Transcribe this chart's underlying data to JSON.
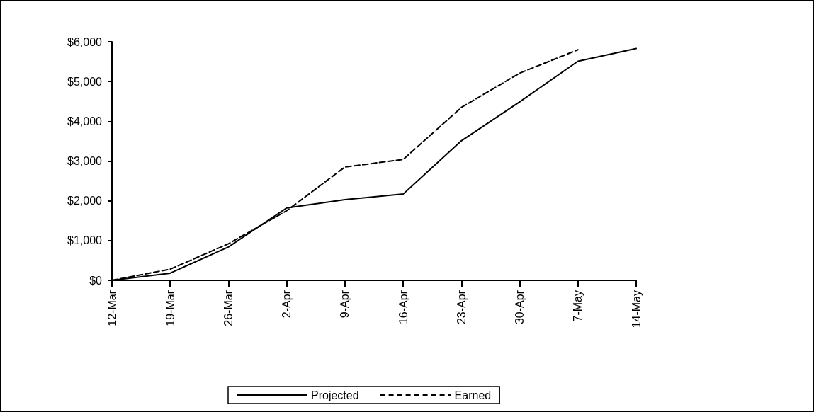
{
  "chart_data": {
    "type": "line",
    "categories": [
      "12-Mar",
      "19-Mar",
      "26-Mar",
      "2-Apr",
      "9-Apr",
      "16-Apr",
      "23-Apr",
      "30-Apr",
      "7-May",
      "14-May"
    ],
    "series": [
      {
        "name": "Projected",
        "color": "#000000",
        "line_style": "solid",
        "values": [
          0,
          180,
          840,
          1820,
          2030,
          2170,
          3510,
          4490,
          5510,
          5830
        ]
      },
      {
        "name": "Earned",
        "color": "#000000",
        "line_style": "dashed",
        "values": [
          0,
          280,
          920,
          1750,
          2850,
          3040,
          4350,
          5210,
          5800,
          null
        ]
      }
    ],
    "ylim": [
      0,
      6000
    ],
    "yticks": [
      {
        "value": 0,
        "label": "$0"
      },
      {
        "value": 1000,
        "label": "$1,000"
      },
      {
        "value": 2000,
        "label": "$2,000"
      },
      {
        "value": 3000,
        "label": "$3,000"
      },
      {
        "value": 4000,
        "label": "$4,000"
      },
      {
        "value": 5000,
        "label": "$5,000"
      },
      {
        "value": 6000,
        "label": "$6,000"
      }
    ],
    "grid": false,
    "legend": "bottom",
    "marker": "none"
  }
}
